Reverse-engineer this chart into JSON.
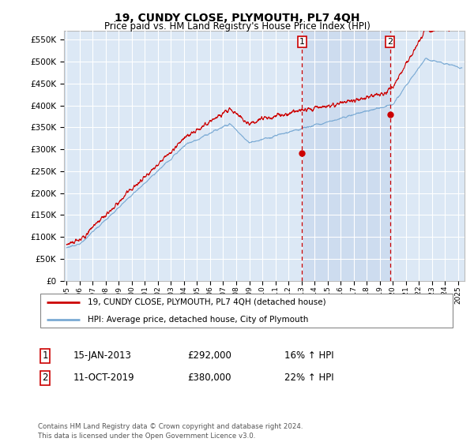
{
  "title": "19, CUNDY CLOSE, PLYMOUTH, PL7 4QH",
  "subtitle": "Price paid vs. HM Land Registry's House Price Index (HPI)",
  "ylabel_ticks": [
    "£0",
    "£50K",
    "£100K",
    "£150K",
    "£200K",
    "£250K",
    "£300K",
    "£350K",
    "£400K",
    "£450K",
    "£500K",
    "£550K"
  ],
  "ytick_values": [
    0,
    50000,
    100000,
    150000,
    200000,
    250000,
    300000,
    350000,
    400000,
    450000,
    500000,
    550000
  ],
  "ylim": [
    0,
    570000
  ],
  "xlim_start": 1994.8,
  "xlim_end": 2025.5,
  "xtick_years": [
    1995,
    1996,
    1997,
    1998,
    1999,
    2000,
    2001,
    2002,
    2003,
    2004,
    2005,
    2006,
    2007,
    2008,
    2009,
    2010,
    2011,
    2012,
    2013,
    2014,
    2015,
    2016,
    2017,
    2018,
    2019,
    2020,
    2021,
    2022,
    2023,
    2024,
    2025
  ],
  "hpi_color": "#7aaad4",
  "sale_color": "#cc0000",
  "vline_color": "#cc0000",
  "sale1_x": 2013.04,
  "sale1_y": 292000,
  "sale2_x": 2019.78,
  "sale2_y": 380000,
  "sale1_label": "15-JAN-2013",
  "sale1_price": "£292,000",
  "sale1_hpi": "16% ↑ HPI",
  "sale2_label": "11-OCT-2019",
  "sale2_price": "£380,000",
  "sale2_hpi": "22% ↑ HPI",
  "legend_line1": "19, CUNDY CLOSE, PLYMOUTH, PL7 4QH (detached house)",
  "legend_line2": "HPI: Average price, detached house, City of Plymouth",
  "footnote": "Contains HM Land Registry data © Crown copyright and database right 2024.\nThis data is licensed under the Open Government Licence v3.0.",
  "background_plot": "#dce8f5",
  "shade_color": "#c8d8ed",
  "background_fig": "#ffffff",
  "grid_color": "#ffffff"
}
